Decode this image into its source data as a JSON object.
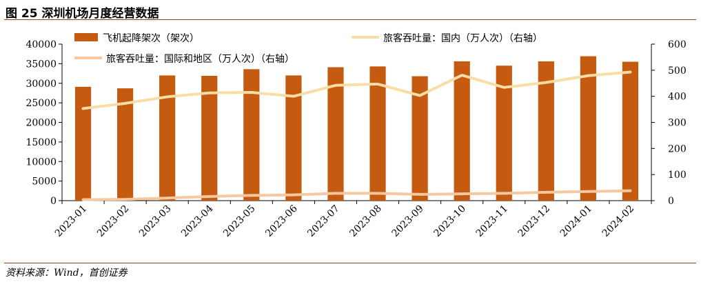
{
  "figure": {
    "title": "图 25 深圳机场月度经营数据",
    "source": "资料来源：Wind，首创证券"
  },
  "chart_data": {
    "type": "bar+line",
    "categories": [
      "2023-01",
      "2023-02",
      "2023-03",
      "2023-04",
      "2023-05",
      "2023-06",
      "2023-07",
      "2023-08",
      "2023-09",
      "2023-10",
      "2023-11",
      "2023-12",
      "2024-01",
      "2024-02"
    ],
    "left_axis": {
      "ylim": [
        0,
        40000
      ],
      "ticks": [
        "0",
        "5000",
        "10000",
        "15000",
        "20000",
        "25000",
        "30000",
        "35000",
        "40000"
      ]
    },
    "right_axis": {
      "ylim": [
        0,
        600
      ],
      "ticks": [
        "0",
        "100",
        "200",
        "300",
        "400",
        "500",
        "600"
      ]
    },
    "series": [
      {
        "name": "飞机起降架次（架次）",
        "type": "bar",
        "axis": "left",
        "color": "#c55a11",
        "values": [
          29100,
          28700,
          32000,
          31900,
          33600,
          32000,
          34100,
          34300,
          31800,
          35600,
          34500,
          35600,
          36900,
          35500
        ]
      },
      {
        "name": "旅客吞吐量：国内（万人次）（右轴）",
        "type": "line",
        "axis": "right",
        "color": "#f8dea4",
        "values": [
          353,
          373,
          398,
          413,
          415,
          400,
          442,
          447,
          403,
          481,
          434,
          453,
          479,
          493
        ]
      },
      {
        "name": "旅客吞吐量：国际和地区（万人次）（右轴）",
        "type": "line",
        "axis": "right",
        "color": "#f5c8a0",
        "values": [
          4,
          5,
          10,
          16,
          20,
          22,
          28,
          28,
          24,
          26,
          28,
          32,
          35,
          38
        ]
      }
    ]
  }
}
